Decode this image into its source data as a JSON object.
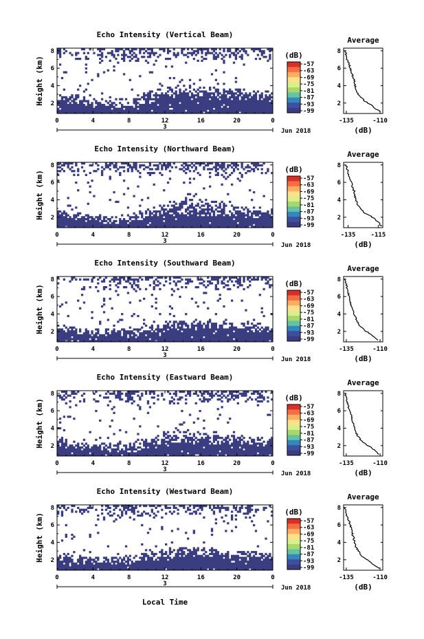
{
  "chart_data": {
    "type": "heatmap",
    "xlabel": "Local Time",
    "date_label": "Jun 2018",
    "day_label": "3",
    "x_ticks": [
      "0",
      "4",
      "8",
      "12",
      "16",
      "20",
      "0"
    ],
    "xlim": [
      0,
      24
    ],
    "ylabel": "Height (km)",
    "y_ticks": [
      "2",
      "4",
      "6",
      "8"
    ],
    "ylim": [
      0.8,
      8.3
    ],
    "colorbar": {
      "unit": "(dB)",
      "ticks": [
        "-57",
        "-63",
        "-69",
        "-75",
        "-81",
        "-87",
        "-93",
        "-99"
      ],
      "colors": [
        "#d73027",
        "#f46d43",
        "#fdae61",
        "#fee08b",
        "#d9ef8b",
        "#a6d96a",
        "#66c2a5",
        "#3288bd",
        "#3f4fa0",
        "#3a3d80"
      ]
    },
    "fill_color": "#3a3d80",
    "average_title": "Average",
    "average_xlabel": "(dB)",
    "panels": [
      {
        "title": "Echo Intensity (Vertical Beam)",
        "avg_x_ticks": [
          "-135",
          "-110"
        ],
        "avg_xlim": [
          -137,
          -108
        ],
        "avg_profile": {
          "height": [
            8.0,
            7.5,
            7.0,
            6.5,
            6.0,
            5.5,
            5.0,
            4.5,
            4.0,
            3.5,
            3.0,
            2.6,
            2.2,
            2.0,
            1.8,
            1.6,
            1.4,
            1.2,
            1.0
          ],
          "db": [
            -136,
            -135,
            -134.5,
            -133,
            -132,
            -131,
            -130,
            -129,
            -128.5,
            -128,
            -126,
            -124,
            -121,
            -119,
            -117,
            -115,
            -114,
            -112,
            -110
          ]
        },
        "profile": {
          "time": [
            0,
            2,
            4,
            6,
            8,
            10,
            12,
            14,
            16,
            18,
            20,
            22,
            24
          ],
          "bottom": [
            2.0,
            1.8,
            1.5,
            1.3,
            1.3,
            1.8,
            2.3,
            2.5,
            2.5,
            2.4,
            2.3,
            2.3,
            2.4
          ],
          "layer": [
            3.2,
            3.0,
            2.6,
            2.4,
            2.6,
            3.4,
            3.9,
            4.1,
            4.0,
            3.9,
            3.6,
            3.5,
            3.5
          ],
          "top_activity": [
            0.55,
            0.35,
            0.3,
            0.5,
            0.85,
            0.6,
            0.5,
            0.4,
            0.8,
            0.85,
            0.7,
            0.55,
            0.5
          ]
        }
      },
      {
        "title": "Echo Intensity (Northward Beam)",
        "avg_x_ticks": [
          "-135",
          "-115"
        ],
        "avg_xlim": [
          -138,
          -112
        ],
        "avg_profile": {
          "height": [
            8.0,
            7.5,
            7.0,
            6.5,
            6.0,
            5.5,
            5.0,
            4.5,
            4.0,
            3.5,
            3.0,
            2.6,
            2.2,
            2.0,
            1.8,
            1.6,
            1.4,
            1.2,
            1.0
          ],
          "db": [
            -136.5,
            -135.5,
            -135,
            -134,
            -133,
            -132.5,
            -131,
            -130.5,
            -130,
            -129,
            -127,
            -125,
            -121,
            -119,
            -117,
            -116,
            -115,
            -114,
            -113
          ]
        },
        "profile": {
          "time": [
            0,
            2,
            4,
            6,
            8,
            10,
            12,
            14,
            16,
            18,
            20,
            22,
            24
          ],
          "bottom": [
            1.9,
            1.7,
            1.4,
            1.2,
            1.2,
            1.6,
            2.0,
            2.1,
            2.1,
            2.0,
            1.9,
            1.9,
            2.0
          ],
          "layer": [
            2.9,
            2.6,
            2.4,
            2.2,
            2.4,
            3.0,
            3.6,
            4.0,
            4.2,
            3.8,
            3.4,
            3.2,
            3.3
          ],
          "top_activity": [
            0.45,
            0.3,
            0.25,
            0.45,
            0.75,
            0.55,
            0.45,
            0.35,
            0.6,
            0.6,
            0.5,
            0.45,
            0.4
          ]
        }
      },
      {
        "title": "Echo Intensity (Southward Beam)",
        "avg_x_ticks": [
          "-135",
          "-110"
        ],
        "avg_xlim": [
          -137,
          -108
        ],
        "avg_profile": {
          "height": [
            8.0,
            7.5,
            7.0,
            6.5,
            6.0,
            5.5,
            5.0,
            4.5,
            4.0,
            3.5,
            3.0,
            2.6,
            2.2,
            2.0,
            1.8,
            1.6,
            1.4,
            1.2,
            1.0
          ],
          "db": [
            -136,
            -135,
            -134.5,
            -133.5,
            -133,
            -132,
            -131.5,
            -130,
            -129,
            -128,
            -126.5,
            -125,
            -122,
            -120,
            -118,
            -116,
            -115,
            -113,
            -111
          ]
        },
        "profile": {
          "time": [
            0,
            2,
            4,
            6,
            8,
            10,
            12,
            14,
            16,
            18,
            20,
            22,
            24
          ],
          "bottom": [
            1.9,
            1.7,
            1.5,
            1.4,
            1.3,
            1.4,
            1.7,
            1.9,
            2.0,
            2.0,
            1.9,
            1.9,
            1.9
          ],
          "layer": [
            2.8,
            2.5,
            2.4,
            2.3,
            2.5,
            2.8,
            3.2,
            3.4,
            3.4,
            3.3,
            3.1,
            3.0,
            3.0
          ],
          "top_activity": [
            0.4,
            0.25,
            0.35,
            0.55,
            0.8,
            0.5,
            0.4,
            0.5,
            0.35,
            0.55,
            0.45,
            0.4,
            0.35
          ]
        }
      },
      {
        "title": "Echo Intensity (Eastward Beam)",
        "avg_x_ticks": [
          "-135",
          "-110"
        ],
        "avg_xlim": [
          -137,
          -108
        ],
        "avg_profile": {
          "height": [
            8.0,
            7.5,
            7.0,
            6.5,
            6.0,
            5.5,
            5.0,
            4.5,
            4.0,
            3.5,
            3.0,
            2.6,
            2.2,
            2.0,
            1.8,
            1.6,
            1.4,
            1.2,
            1.0
          ],
          "db": [
            -136,
            -135,
            -134.5,
            -133.5,
            -132.5,
            -131.5,
            -130.5,
            -130,
            -129,
            -128,
            -126,
            -124,
            -121,
            -119,
            -117,
            -115,
            -114,
            -112,
            -111
          ]
        },
        "profile": {
          "time": [
            0,
            2,
            4,
            6,
            8,
            10,
            12,
            14,
            16,
            18,
            20,
            22,
            24
          ],
          "bottom": [
            1.9,
            1.6,
            1.4,
            1.2,
            1.2,
            1.5,
            1.9,
            2.1,
            2.1,
            2.0,
            1.9,
            1.8,
            1.9
          ],
          "layer": [
            2.9,
            2.6,
            2.4,
            2.3,
            2.5,
            3.0,
            3.4,
            3.6,
            3.6,
            3.4,
            3.1,
            3.0,
            3.0
          ],
          "top_activity": [
            0.5,
            0.35,
            0.3,
            0.5,
            0.8,
            0.55,
            0.45,
            0.4,
            0.6,
            0.75,
            0.65,
            0.5,
            0.45
          ]
        }
      },
      {
        "title": "Echo Intensity (Westward Beam)",
        "avg_x_ticks": [
          "-135",
          "-110"
        ],
        "avg_xlim": [
          -137,
          -108
        ],
        "avg_profile": {
          "height": [
            8.0,
            7.5,
            7.0,
            6.5,
            6.0,
            5.5,
            5.0,
            4.5,
            4.0,
            3.5,
            3.0,
            2.6,
            2.2,
            2.0,
            1.8,
            1.6,
            1.4,
            1.2,
            1.0
          ],
          "db": [
            -136,
            -135.5,
            -134.5,
            -133,
            -132,
            -131,
            -130.5,
            -129.5,
            -129,
            -128,
            -126,
            -124.5,
            -122,
            -120,
            -118,
            -116,
            -114.5,
            -112.5,
            -111
          ]
        },
        "profile": {
          "time": [
            0,
            2,
            4,
            6,
            8,
            10,
            12,
            14,
            16,
            18,
            20,
            22,
            24
          ],
          "bottom": [
            1.9,
            1.7,
            1.5,
            1.3,
            1.3,
            1.6,
            1.9,
            2.1,
            2.1,
            2.0,
            1.9,
            1.9,
            1.9
          ],
          "layer": [
            2.9,
            2.6,
            2.4,
            2.3,
            2.5,
            2.9,
            3.3,
            3.5,
            3.5,
            3.3,
            3.1,
            3.0,
            3.0
          ],
          "top_activity": [
            0.45,
            0.3,
            0.3,
            0.5,
            0.75,
            0.5,
            0.4,
            0.35,
            0.55,
            0.6,
            0.5,
            0.45,
            0.4
          ]
        }
      }
    ]
  }
}
